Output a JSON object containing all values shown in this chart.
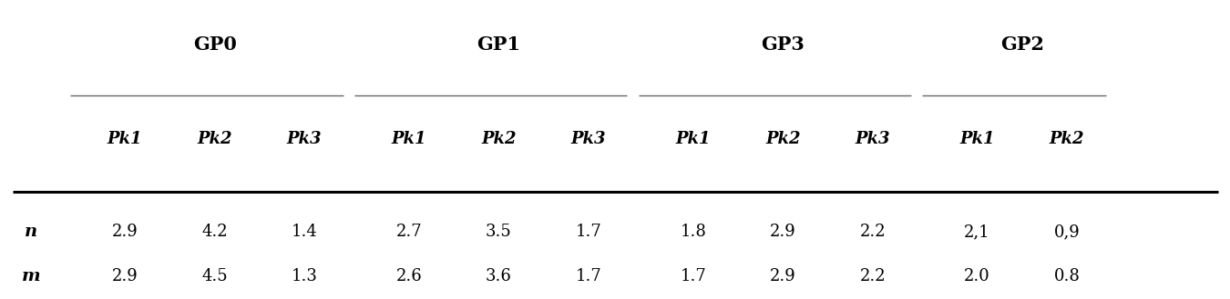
{
  "groups": [
    "GP0",
    "GP1",
    "GP3",
    "GP2"
  ],
  "subheaders": [
    "Pk1",
    "Pk2",
    "Pk3",
    "Pk1",
    "Pk2",
    "Pk3",
    "Pk1",
    "Pk2",
    "Pk3",
    "Pk1",
    "Pk2"
  ],
  "row_labels": [
    "n",
    "m"
  ],
  "data": [
    [
      "2.9",
      "4.2",
      "1.4",
      "2.7",
      "3.5",
      "1.7",
      "1.8",
      "2.9",
      "2.2",
      "2,1",
      "0,9"
    ],
    [
      "2.9",
      "4.5",
      "1.3",
      "2.6",
      "3.6",
      "1.7",
      "1.7",
      "2.9",
      "2.2",
      "2.0",
      "0.8"
    ]
  ],
  "bg_color": "#ffffff",
  "text_color": "#000000",
  "header_fontsize": 15,
  "subheader_fontsize": 13,
  "data_fontsize": 13,
  "rowlabel_fontsize": 14
}
